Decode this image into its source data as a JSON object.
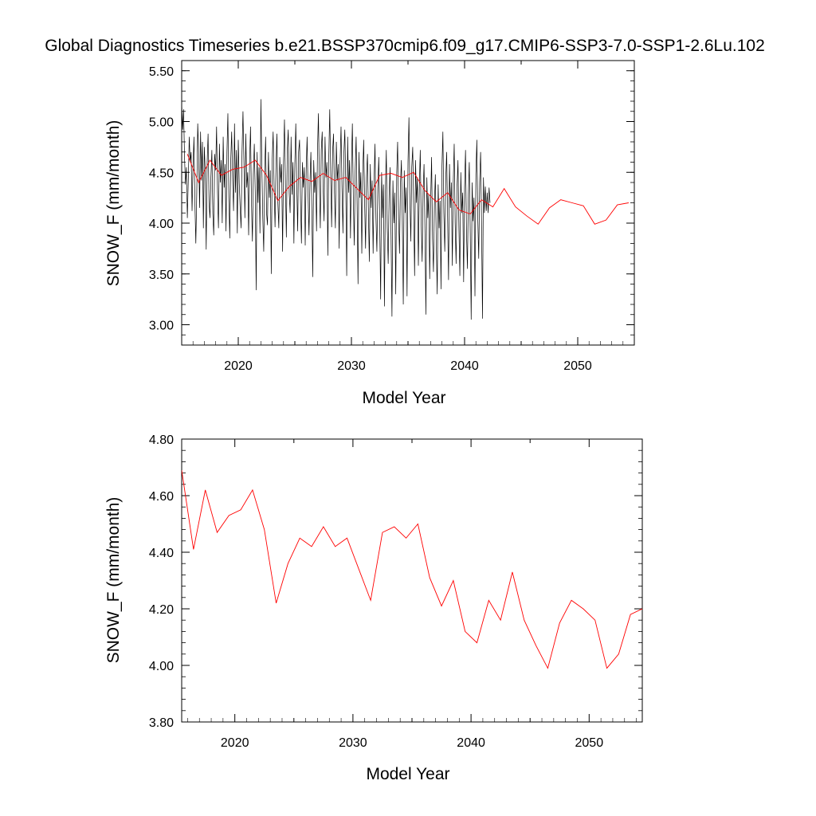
{
  "title": "Global Diagnostics Timeseries b.e21.BSSP370cmip6.f09_g17.CMIP6-SSP3-7.0-SSP1-2.6Lu.102",
  "colors": {
    "monthly": "#000000",
    "annual": "#ff0000",
    "axis": "#000000"
  },
  "chart_data": [
    {
      "type": "line",
      "xlabel": "Model Year",
      "ylabel": "SNOW_F (mm/month)",
      "xlim": [
        2015,
        2055
      ],
      "ylim": [
        2.8,
        5.6
      ],
      "xticks": [
        2020,
        2030,
        2040,
        2050
      ],
      "xtick_labels": [
        "2020",
        "2030",
        "2040",
        "2050"
      ],
      "yticks": [
        3.0,
        3.5,
        4.0,
        4.5,
        5.0,
        5.5
      ],
      "ytick_labels": [
        "3.00",
        "3.50",
        "4.00",
        "4.50",
        "5.00",
        "5.50"
      ],
      "series": [
        {
          "color": "#000000",
          "x_start": 2015.0,
          "x_step": 0.0833333,
          "values": [
            5.18,
            4.92,
            5.12,
            4.65,
            4.38,
            4.55,
            4.05,
            4.42,
            4.85,
            4.6,
            4.7,
            4.12,
            4.55,
            4.85,
            4.2,
            3.8,
            4.3,
            4.98,
            4.7,
            4.15,
            4.9,
            4.42,
            4.8,
            3.95,
            4.75,
            4.5,
            3.74,
            4.6,
            4.88,
            4.2,
            4.05,
            4.45,
            4.72,
            4.1,
            3.88,
            4.68,
            4.52,
            4.95,
            4.3,
            3.95,
            4.78,
            4.4,
            4.62,
            4.0,
            4.85,
            4.35,
            4.58,
            3.92,
            4.7,
            5.08,
            4.25,
            3.85,
            4.6,
            4.9,
            4.45,
            4.12,
            4.98,
            4.3,
            4.72,
            3.9,
            4.82,
            4.4,
            4.15,
            3.95,
            4.7,
            5.1,
            4.6,
            4.05,
            4.88,
            4.35,
            4.5,
            3.88,
            4.6,
            4.95,
            4.2,
            3.82,
            4.48,
            4.78,
            4.3,
            3.34,
            4.7,
            4.2,
            4.55,
            3.9,
            5.22,
            4.55,
            4.05,
            3.72,
            4.5,
            4.85,
            4.1,
            3.98,
            4.7,
            4.25,
            4.52,
            3.5,
            4.62,
            4.9,
            4.35,
            3.96,
            4.55,
            4.88,
            4.2,
            3.95,
            4.65,
            4.4,
            4.58,
            3.72,
            4.6,
            5.02,
            4.38,
            3.86,
            4.72,
            4.92,
            4.3,
            4.1,
            4.85,
            4.28,
            4.6,
            3.8,
            4.58,
            4.98,
            4.4,
            3.92,
            4.7,
            4.82,
            4.22,
            3.8,
            4.6,
            4.35,
            4.55,
            3.78,
            4.52,
            4.85,
            4.3,
            3.88,
            4.4,
            4.7,
            4.15,
            3.47,
            4.62,
            4.3,
            4.5,
            3.92,
            4.7,
            5.08,
            4.4,
            3.95,
            4.72,
            4.9,
            4.35,
            4.02,
            4.85,
            4.45,
            4.6,
            3.68,
            4.65,
            5.12,
            4.5,
            3.96,
            4.7,
            4.88,
            4.3,
            3.95,
            4.8,
            4.42,
            4.58,
            3.75,
            4.6,
            4.95,
            4.35,
            3.9,
            4.68,
            4.92,
            4.38,
            3.48,
            4.85,
            4.3,
            4.62,
            3.85,
            4.55,
            4.98,
            4.25,
            3.78,
            4.52,
            4.85,
            4.18,
            3.4,
            4.7,
            4.25,
            4.5,
            3.7,
            4.48,
            4.82,
            4.2,
            3.75,
            4.45,
            4.68,
            4.1,
            3.62,
            4.58,
            4.15,
            4.42,
            3.7,
            4.4,
            4.78,
            4.05,
            3.72,
            4.35,
            4.65,
            4.0,
            3.25,
            4.5,
            4.05,
            4.38,
            3.18,
            4.3,
            4.72,
            3.95,
            3.6,
            4.28,
            4.55,
            3.9,
            3.08,
            4.42,
            4.0,
            4.3,
            3.3,
            4.48,
            4.8,
            4.05,
            3.7,
            4.38,
            4.62,
            4.02,
            3.2,
            4.52,
            4.1,
            4.35,
            3.28,
            4.6,
            5.04,
            4.25,
            3.82,
            4.55,
            4.75,
            4.15,
            3.48,
            4.62,
            4.2,
            4.45,
            3.58,
            4.35,
            4.72,
            4.0,
            3.62,
            4.3,
            4.58,
            3.92,
            3.1,
            4.45,
            4.05,
            4.28,
            3.45,
            4.2,
            4.65,
            3.85,
            3.52,
            4.18,
            4.48,
            3.8,
            3.3,
            4.38,
            3.95,
            4.22,
            3.35,
            4.55,
            4.9,
            4.1,
            3.72,
            4.42,
            4.7,
            4.05,
            3.44,
            4.58,
            4.15,
            4.4,
            3.58,
            4.4,
            4.78,
            4.0,
            3.6,
            4.35,
            4.62,
            3.95,
            3.48,
            4.5,
            4.1,
            4.3,
            3.42,
            4.35,
            4.72,
            3.92,
            3.55,
            4.28,
            4.6,
            3.9,
            3.05,
            4.4,
            4.02,
            4.25,
            3.28,
            4.48,
            4.82,
            4.05,
            3.65,
            4.4,
            4.7,
            4.0,
            3.06,
            4.45,
            4.1,
            4.36,
            4.12,
            4.3,
            4.1,
            4.35,
            4.2
          ]
        },
        {
          "color": "#ff0000",
          "x": [
            2015.5,
            2016.5,
            2017.5,
            2018.5,
            2019.5,
            2020.5,
            2021.5,
            2022.5,
            2023.5,
            2024.5,
            2025.5,
            2026.5,
            2027.5,
            2028.5,
            2029.5,
            2030.5,
            2031.5,
            2032.5,
            2033.5,
            2034.5,
            2035.5,
            2036.5,
            2037.5,
            2038.5,
            2039.5,
            2040.5,
            2041.5,
            2042.5,
            2043.5,
            2044.5,
            2045.5,
            2046.5,
            2047.5,
            2048.5,
            2049.5,
            2050.5,
            2051.5,
            2052.5,
            2053.5,
            2054.5
          ],
          "values": [
            4.68,
            4.4,
            4.62,
            4.47,
            4.53,
            4.55,
            4.62,
            4.47,
            4.22,
            4.36,
            4.45,
            4.41,
            4.49,
            4.42,
            4.45,
            4.34,
            4.23,
            4.47,
            4.49,
            4.45,
            4.5,
            4.32,
            4.21,
            4.3,
            4.13,
            4.09,
            4.23,
            4.16,
            4.34,
            4.16,
            4.07,
            3.99,
            4.15,
            4.23,
            4.2,
            4.17,
            3.99,
            4.03,
            4.18,
            4.2
          ]
        }
      ]
    },
    {
      "type": "line",
      "xlabel": "Model Year",
      "ylabel": "SNOW_F (mm/month)",
      "xlim": [
        2015.5,
        2054.5
      ],
      "ylim": [
        3.8,
        4.8
      ],
      "xticks": [
        2020,
        2030,
        2040,
        2050
      ],
      "xtick_labels": [
        "2020",
        "2030",
        "2040",
        "2050"
      ],
      "yticks": [
        3.8,
        4.0,
        4.2,
        4.4,
        4.6,
        4.8
      ],
      "ytick_labels": [
        "3.80",
        "4.00",
        "4.20",
        "4.40",
        "4.60",
        "4.80"
      ],
      "series": [
        {
          "color": "#ff0000",
          "x": [
            2015.5,
            2016.5,
            2017.5,
            2018.5,
            2019.5,
            2020.5,
            2021.5,
            2022.5,
            2023.5,
            2024.5,
            2025.5,
            2026.5,
            2027.5,
            2028.5,
            2029.5,
            2030.5,
            2031.5,
            2032.5,
            2033.5,
            2034.5,
            2035.5,
            2036.5,
            2037.5,
            2038.5,
            2039.5,
            2040.5,
            2041.5,
            2042.5,
            2043.5,
            2044.5,
            2045.5,
            2046.5,
            2047.5,
            2048.5,
            2049.5,
            2050.5,
            2051.5,
            2052.5,
            2053.5,
            2054.5
          ],
          "values": [
            4.69,
            4.41,
            4.62,
            4.47,
            4.53,
            4.55,
            4.62,
            4.48,
            4.22,
            4.36,
            4.45,
            4.42,
            4.49,
            4.42,
            4.45,
            4.34,
            4.23,
            4.47,
            4.49,
            4.45,
            4.5,
            4.31,
            4.21,
            4.3,
            4.12,
            4.08,
            4.23,
            4.16,
            4.33,
            4.16,
            4.07,
            3.99,
            4.15,
            4.23,
            4.2,
            4.16,
            3.99,
            4.04,
            4.18,
            4.2
          ]
        }
      ]
    }
  ]
}
